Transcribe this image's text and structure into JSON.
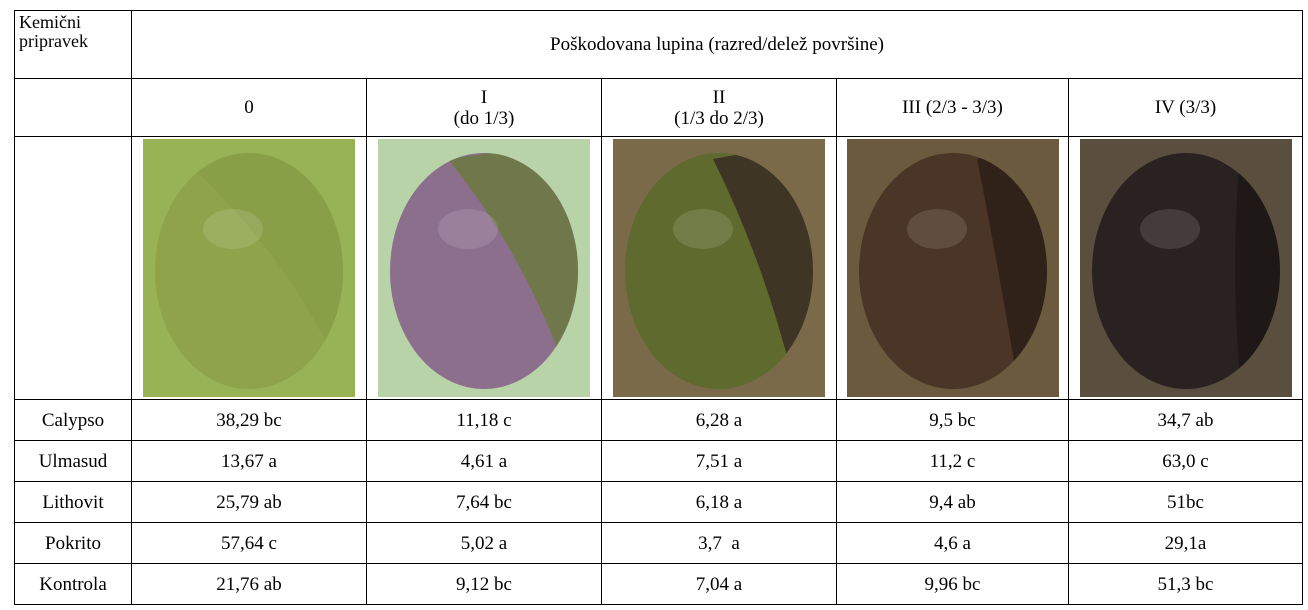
{
  "table": {
    "corner": [
      "Kemični",
      "pripravek"
    ],
    "group_header": "Poškodovana lupina (razred/delež površine)",
    "columns": [
      [
        "0"
      ],
      [
        "I",
        "(do 1/3)"
      ],
      [
        "II",
        "(1/3 do 2/3)"
      ],
      [
        "III (2/3 - 3/3)"
      ],
      [
        "IV (3/3)"
      ]
    ],
    "rows": [
      [
        "Calypso",
        "38,29 bc",
        "11,18 c",
        "6,28 a",
        "9,5 bc",
        "34,7 ab"
      ],
      [
        "Ulmasud",
        "13,67 a",
        "4,61 a",
        "7,51 a",
        "11,2 c",
        "63,0 c"
      ],
      [
        "Lithovit",
        "25,79 ab",
        "7,64 bc",
        "6,18 a",
        "9,4 ab",
        "51bc"
      ],
      [
        "Pokrito",
        "57,64 c",
        "5,02 a",
        "3,7  a",
        "4,6 a",
        "29,1a"
      ],
      [
        "Kontrola",
        "21,76 ab",
        "9,12 bc",
        "7,04 a",
        "9,96 bc",
        "51,3 bc"
      ]
    ]
  }
}
